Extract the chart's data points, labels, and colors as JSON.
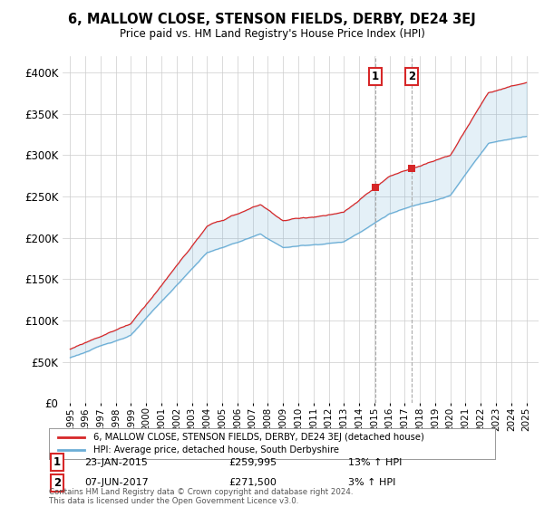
{
  "title": "6, MALLOW CLOSE, STENSON FIELDS, DERBY, DE24 3EJ",
  "subtitle": "Price paid vs. HM Land Registry's House Price Index (HPI)",
  "legend_line1": "6, MALLOW CLOSE, STENSON FIELDS, DERBY, DE24 3EJ (detached house)",
  "legend_line2": "HPI: Average price, detached house, South Derbyshire",
  "annotation1_label": "1",
  "annotation1_date": "23-JAN-2015",
  "annotation1_price": "£259,995",
  "annotation1_hpi": "13% ↑ HPI",
  "annotation2_label": "2",
  "annotation2_date": "07-JUN-2017",
  "annotation2_price": "£271,500",
  "annotation2_hpi": "3% ↑ HPI",
  "footer": "Contains HM Land Registry data © Crown copyright and database right 2024.\nThis data is licensed under the Open Government Licence v3.0.",
  "hpi_color": "#6baed6",
  "price_color": "#d62728",
  "background_color": "#ffffff",
  "plot_bg_color": "#ffffff",
  "grid_color": "#cccccc",
  "ylim": [
    0,
    420000
  ],
  "yticks": [
    0,
    50000,
    100000,
    150000,
    200000,
    250000,
    300000,
    350000,
    400000
  ],
  "sale1_year": 2015.07,
  "sale1_price": 259995,
  "sale2_year": 2017.44,
  "sale2_price": 271500
}
